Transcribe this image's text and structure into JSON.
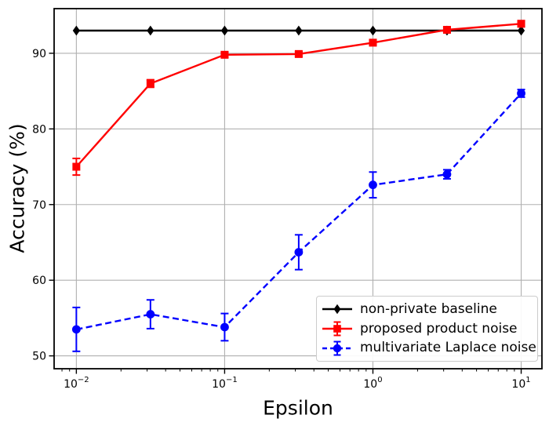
{
  "chart_data": {
    "type": "line",
    "title": "",
    "xlabel": "Epsilon",
    "ylabel": "Accuracy (%)",
    "x_scale": "log",
    "grid": true,
    "grid_color": "#b0b0b0",
    "legend_position": "lower right",
    "x": [
      0.01,
      0.0316,
      0.1,
      0.316,
      1,
      3.16,
      10
    ],
    "x_tick_exponents": [
      -2,
      -1,
      0,
      1
    ],
    "y_ticks": [
      50,
      60,
      70,
      80,
      90
    ],
    "xlim_log10": [
      -2.15,
      1.14
    ],
    "ylim": [
      48.3,
      95.9
    ],
    "series": [
      {
        "name": "non-private baseline",
        "color": "#000000",
        "line_style": "solid",
        "marker": "diamond",
        "values": [
          93.0,
          93.0,
          93.0,
          93.0,
          93.0,
          93.0,
          93.0
        ],
        "yerr": [
          0,
          0,
          0,
          0,
          0,
          0,
          0
        ]
      },
      {
        "name": "proposed product noise",
        "color": "#ff0000",
        "line_style": "solid",
        "marker": "square",
        "values": [
          75.0,
          86.0,
          89.8,
          89.9,
          91.4,
          93.1,
          93.9
        ],
        "yerr": [
          1.1,
          0.5,
          0.3,
          0.3,
          0.3,
          0.3,
          0.4
        ]
      },
      {
        "name": "multivariate Laplace noise",
        "color": "#0000ff",
        "line_style": "dashed",
        "marker": "circle",
        "values": [
          53.5,
          55.5,
          53.8,
          63.7,
          72.6,
          74.0,
          84.7
        ],
        "yerr": [
          2.9,
          1.9,
          1.8,
          2.3,
          1.7,
          0.6,
          0.5
        ]
      }
    ]
  }
}
